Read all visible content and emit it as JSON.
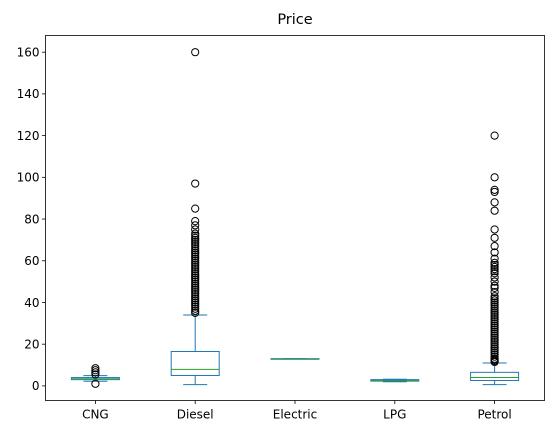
{
  "chart_data": {
    "type": "box",
    "title": "Price",
    "xlabel": "",
    "ylabel": "",
    "ylim": [
      -7,
      168
    ],
    "yticks": [
      0,
      20,
      40,
      60,
      80,
      100,
      120,
      140,
      160
    ],
    "categories": [
      "CNG",
      "Diesel",
      "Electric",
      "LPG",
      "Petrol"
    ],
    "colors": {
      "box": "#1f77b4",
      "median": "#2ca02c",
      "flier": "#000000"
    },
    "boxes": [
      {
        "category": "CNG",
        "whisker_low": 2.2,
        "q1": 3.0,
        "median": 3.4,
        "q3": 4.0,
        "whisker_high": 4.9,
        "fliers": [
          1.0,
          5.5,
          6.5,
          7.5,
          8.5
        ]
      },
      {
        "category": "Diesel",
        "whisker_low": 0.6,
        "q1": 5.0,
        "median": 7.9,
        "q3": 16.5,
        "whisker_high": 34.0,
        "fliers": [
          35,
          36,
          37,
          38,
          39,
          40,
          41,
          42,
          43,
          44,
          45,
          46,
          47,
          48,
          49,
          50,
          51,
          52,
          53,
          54,
          55,
          56,
          57,
          58,
          59,
          60,
          61,
          62,
          63,
          64,
          65,
          66,
          67,
          68,
          69,
          70,
          71,
          72,
          73,
          75,
          77,
          79,
          85,
          97,
          160
        ]
      },
      {
        "category": "Electric",
        "whisker_low": 13.0,
        "q1": 13.0,
        "median": 13.0,
        "q3": 13.0,
        "whisker_high": 13.0,
        "fliers": []
      },
      {
        "category": "LPG",
        "whisker_low": 2.0,
        "q1": 2.3,
        "median": 2.6,
        "q3": 3.0,
        "whisker_high": 3.2,
        "fliers": []
      },
      {
        "category": "Petrol",
        "whisker_low": 0.6,
        "q1": 2.6,
        "median": 4.0,
        "q3": 6.5,
        "whisker_high": 11.0,
        "fliers": [
          11.5,
          12,
          12.5,
          13,
          14,
          15,
          16,
          17,
          18,
          19,
          20,
          21,
          22,
          23,
          24,
          25,
          26,
          27,
          28,
          29,
          30,
          31,
          32,
          33,
          34,
          35,
          36,
          37,
          38,
          39,
          40,
          41,
          42,
          43,
          45,
          47,
          48,
          50,
          52,
          54,
          55,
          56,
          57,
          58,
          59,
          61,
          64,
          67,
          71,
          75,
          84,
          88,
          93,
          94,
          100,
          120
        ]
      }
    ]
  }
}
